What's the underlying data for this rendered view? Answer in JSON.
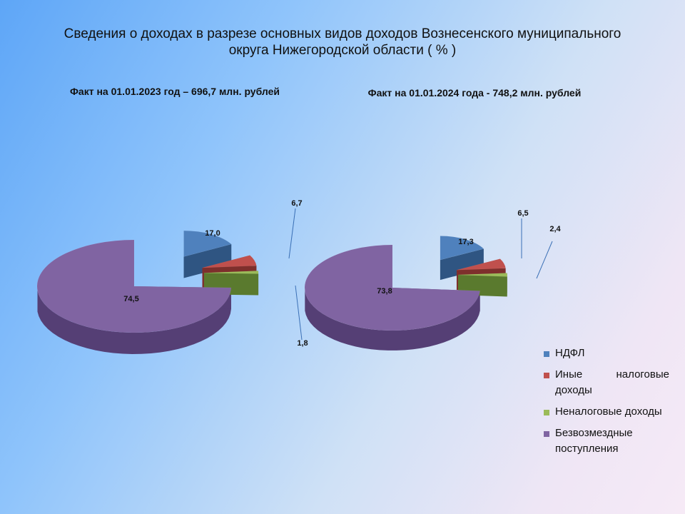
{
  "title": "Сведения о доходах в разрезе основных видов доходов Вознесенского муниципального округа Нижегородской области ( % )",
  "chart_data": [
    {
      "type": "pie",
      "title": "Факт на 01.01.2023 год – 696,7 млн. рублей",
      "categories": [
        "НДФЛ",
        "Иные налоговые доходы",
        "Неналоговые доходы",
        "Безвозмездные поступления"
      ],
      "values": [
        17.0,
        6.7,
        1.8,
        74.5
      ],
      "value_labels": [
        "17,0",
        "6,7",
        "1,8",
        "74,5"
      ]
    },
    {
      "type": "pie",
      "title": "Факт на 01.01.2024 года - 748,2 млн. рублей",
      "categories": [
        "НДФЛ",
        "Иные налоговые доходы",
        "Неналоговые доходы",
        "Безвозмездные поступления"
      ],
      "values": [
        17.3,
        6.5,
        2.4,
        73.8
      ],
      "value_labels": [
        "17,3",
        "6,5",
        "2,4",
        "73,8"
      ]
    }
  ],
  "legend": [
    {
      "label": "НДФЛ",
      "color": "#4f81bd"
    },
    {
      "label": "Иные налоговые доходы",
      "color": "#c0504d"
    },
    {
      "label": "Неналоговые доходы",
      "color": "#9bbb59"
    },
    {
      "label": "Безвозмездные поступления",
      "color": "#8064a2"
    }
  ],
  "legend_position": "bottom-right"
}
